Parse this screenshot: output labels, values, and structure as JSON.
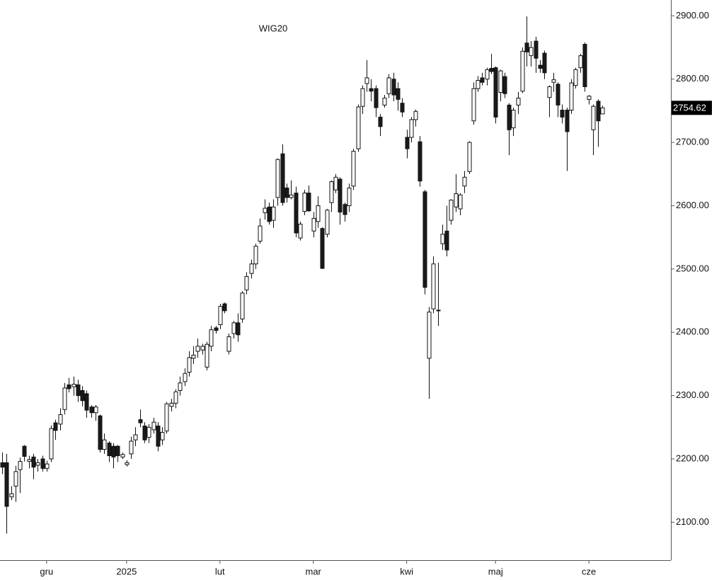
{
  "chart_data": {
    "type": "candlestick",
    "title": "WIG20",
    "up_color": "#ffffff",
    "down_color": "#1a1a1a",
    "ylim": [
      2040,
      2925
    ],
    "yticks": [
      {
        "value": 2100,
        "label": "2100.00"
      },
      {
        "value": 2200,
        "label": "2200.00"
      },
      {
        "value": 2300,
        "label": "2300.00"
      },
      {
        "value": 2400,
        "label": "2400.00"
      },
      {
        "value": 2500,
        "label": "2500.00"
      },
      {
        "value": 2600,
        "label": "2600.00"
      },
      {
        "value": 2700,
        "label": "2700.00"
      },
      {
        "value": 2800,
        "label": "2800.00"
      },
      {
        "value": 2900,
        "label": "2900.00"
      }
    ],
    "xticks": [
      {
        "value": 10,
        "label": "gru"
      },
      {
        "value": 28,
        "label": "2025"
      },
      {
        "value": 49,
        "label": "lut"
      },
      {
        "value": 70,
        "label": "mar"
      },
      {
        "value": 91,
        "label": "kwi"
      },
      {
        "value": 111,
        "label": "maj"
      },
      {
        "value": 132,
        "label": "cze"
      }
    ],
    "ohlc": [
      [
        2194,
        2210,
        2176,
        2187
      ],
      [
        2194,
        2208,
        2082,
        2125
      ],
      [
        2140,
        2157,
        2135,
        2145
      ],
      [
        2157,
        2189,
        2132,
        2180
      ],
      [
        2183,
        2202,
        2146,
        2196
      ],
      [
        2220,
        2222,
        2196,
        2204
      ],
      [
        2196,
        2205,
        2185,
        2199
      ],
      [
        2203,
        2208,
        2168,
        2187
      ],
      [
        2190,
        2200,
        2180,
        2194
      ],
      [
        2200,
        2205,
        2180,
        2185
      ],
      [
        2185,
        2197,
        2180,
        2192
      ],
      [
        2200,
        2253,
        2195,
        2248
      ],
      [
        2257,
        2262,
        2230,
        2245
      ],
      [
        2255,
        2280,
        2245,
        2270
      ],
      [
        2278,
        2320,
        2270,
        2312
      ],
      [
        2317,
        2328,
        2305,
        2311
      ],
      [
        2314,
        2330,
        2300,
        2318
      ],
      [
        2317,
        2325,
        2290,
        2300
      ],
      [
        2308,
        2315,
        2283,
        2292
      ],
      [
        2303,
        2308,
        2265,
        2277
      ],
      [
        2282,
        2285,
        2265,
        2273
      ],
      [
        2273,
        2285,
        2260,
        2282
      ],
      [
        2268,
        2270,
        2210,
        2215
      ],
      [
        2215,
        2240,
        2208,
        2230
      ],
      [
        2225,
        2228,
        2195,
        2205
      ],
      [
        2220,
        2225,
        2185,
        2203
      ],
      [
        2220,
        2222,
        2195,
        2205
      ],
      [
        2203,
        2210,
        2200,
        2207
      ],
      [
        2191,
        2198,
        2188,
        2194
      ],
      [
        2208,
        2235,
        2200,
        2228
      ],
      [
        2230,
        2250,
        2220,
        2238
      ],
      [
        2262,
        2278,
        2250,
        2257
      ],
      [
        2252,
        2258,
        2225,
        2230
      ],
      [
        2234,
        2255,
        2225,
        2250
      ],
      [
        2246,
        2265,
        2240,
        2258
      ],
      [
        2252,
        2258,
        2212,
        2220
      ],
      [
        2230,
        2250,
        2222,
        2242
      ],
      [
        2244,
        2290,
        2240,
        2287
      ],
      [
        2283,
        2295,
        2275,
        2288
      ],
      [
        2288,
        2310,
        2280,
        2306
      ],
      [
        2308,
        2330,
        2300,
        2320
      ],
      [
        2322,
        2343,
        2315,
        2335
      ],
      [
        2337,
        2370,
        2330,
        2360
      ],
      [
        2359,
        2378,
        2350,
        2364
      ],
      [
        2370,
        2390,
        2360,
        2378
      ],
      [
        2372,
        2382,
        2365,
        2378
      ],
      [
        2345,
        2385,
        2340,
        2381
      ],
      [
        2378,
        2410,
        2370,
        2404
      ],
      [
        2407,
        2410,
        2398,
        2403
      ],
      [
        2412,
        2445,
        2405,
        2441
      ],
      [
        2445,
        2447,
        2430,
        2434
      ],
      [
        2370,
        2398,
        2365,
        2393
      ],
      [
        2398,
        2418,
        2390,
        2415
      ],
      [
        2415,
        2430,
        2385,
        2396
      ],
      [
        2421,
        2465,
        2415,
        2462
      ],
      [
        2467,
        2495,
        2460,
        2488
      ],
      [
        2493,
        2515,
        2485,
        2508
      ],
      [
        2508,
        2540,
        2500,
        2536
      ],
      [
        2544,
        2580,
        2540,
        2568
      ],
      [
        2589,
        2610,
        2578,
        2596
      ],
      [
        2598,
        2605,
        2570,
        2575
      ],
      [
        2577,
        2610,
        2565,
        2598
      ],
      [
        2613,
        2675,
        2600,
        2673
      ],
      [
        2682,
        2697,
        2600,
        2605
      ],
      [
        2628,
        2635,
        2605,
        2613
      ],
      [
        2613,
        2640,
        2610,
        2617
      ],
      [
        2620,
        2630,
        2550,
        2557
      ],
      [
        2549,
        2575,
        2545,
        2571
      ],
      [
        2591,
        2625,
        2585,
        2620
      ],
      [
        2620,
        2632,
        2590,
        2592
      ],
      [
        2560,
        2590,
        2550,
        2580
      ],
      [
        2575,
        2615,
        2565,
        2600
      ],
      [
        2564,
        2566,
        2500,
        2501
      ],
      [
        2555,
        2595,
        2550,
        2593
      ],
      [
        2605,
        2640,
        2590,
        2638
      ],
      [
        2625,
        2650,
        2620,
        2645
      ],
      [
        2642,
        2645,
        2570,
        2590
      ],
      [
        2602,
        2605,
        2575,
        2586
      ],
      [
        2600,
        2635,
        2590,
        2628
      ],
      [
        2631,
        2690,
        2625,
        2686
      ],
      [
        2690,
        2760,
        2685,
        2756
      ],
      [
        2757,
        2790,
        2745,
        2785
      ],
      [
        2793,
        2830,
        2780,
        2802
      ],
      [
        2785,
        2800,
        2765,
        2781
      ],
      [
        2785,
        2790,
        2740,
        2755
      ],
      [
        2740,
        2745,
        2710,
        2725
      ],
      [
        2759,
        2775,
        2755,
        2770
      ],
      [
        2777,
        2808,
        2770,
        2802
      ],
      [
        2800,
        2810,
        2765,
        2775
      ],
      [
        2785,
        2795,
        2750,
        2768
      ],
      [
        2762,
        2770,
        2740,
        2748
      ],
      [
        2708,
        2720,
        2675,
        2690
      ],
      [
        2708,
        2740,
        2700,
        2736
      ],
      [
        2736,
        2752,
        2725,
        2749
      ],
      [
        2701,
        2710,
        2630,
        2639
      ],
      [
        2622,
        2625,
        2460,
        2471
      ],
      [
        2359,
        2440,
        2295,
        2432
      ],
      [
        2437,
        2520,
        2430,
        2508
      ],
      [
        2434,
        2510,
        2410,
        2435
      ],
      [
        2540,
        2570,
        2530,
        2555
      ],
      [
        2560,
        2600,
        2520,
        2530
      ],
      [
        2577,
        2610,
        2570,
        2609
      ],
      [
        2598,
        2650,
        2590,
        2619
      ],
      [
        2595,
        2620,
        2585,
        2617
      ],
      [
        2631,
        2655,
        2620,
        2645
      ],
      [
        2654,
        2702,
        2650,
        2700
      ],
      [
        2734,
        2795,
        2728,
        2785
      ],
      [
        2785,
        2805,
        2780,
        2798
      ],
      [
        2802,
        2810,
        2790,
        2795
      ],
      [
        2800,
        2818,
        2790,
        2815
      ],
      [
        2817,
        2840,
        2808,
        2812
      ],
      [
        2818,
        2820,
        2730,
        2740
      ],
      [
        2779,
        2815,
        2765,
        2813
      ],
      [
        2804,
        2810,
        2770,
        2777
      ],
      [
        2759,
        2762,
        2680,
        2720
      ],
      [
        2723,
        2755,
        2710,
        2751
      ],
      [
        2759,
        2780,
        2745,
        2770
      ],
      [
        2781,
        2850,
        2778,
        2844
      ],
      [
        2857,
        2899,
        2820,
        2843
      ],
      [
        2837,
        2860,
        2820,
        2850
      ],
      [
        2860,
        2867,
        2810,
        2833
      ],
      [
        2822,
        2830,
        2810,
        2817
      ],
      [
        2841,
        2845,
        2800,
        2810
      ],
      [
        2771,
        2790,
        2740,
        2788
      ],
      [
        2795,
        2810,
        2780,
        2799
      ],
      [
        2792,
        2795,
        2740,
        2759
      ],
      [
        2751,
        2760,
        2730,
        2740
      ],
      [
        2751,
        2755,
        2655,
        2717
      ],
      [
        2751,
        2800,
        2745,
        2794
      ],
      [
        2790,
        2818,
        2785,
        2815
      ],
      [
        2818,
        2840,
        2810,
        2837
      ],
      [
        2855,
        2858,
        2780,
        2788
      ],
      [
        2768,
        2775,
        2760,
        2773
      ],
      [
        2720,
        2760,
        2680,
        2757
      ],
      [
        2765,
        2768,
        2693,
        2734
      ],
      [
        2745,
        2758,
        2745,
        2754.62
      ]
    ]
  }
}
